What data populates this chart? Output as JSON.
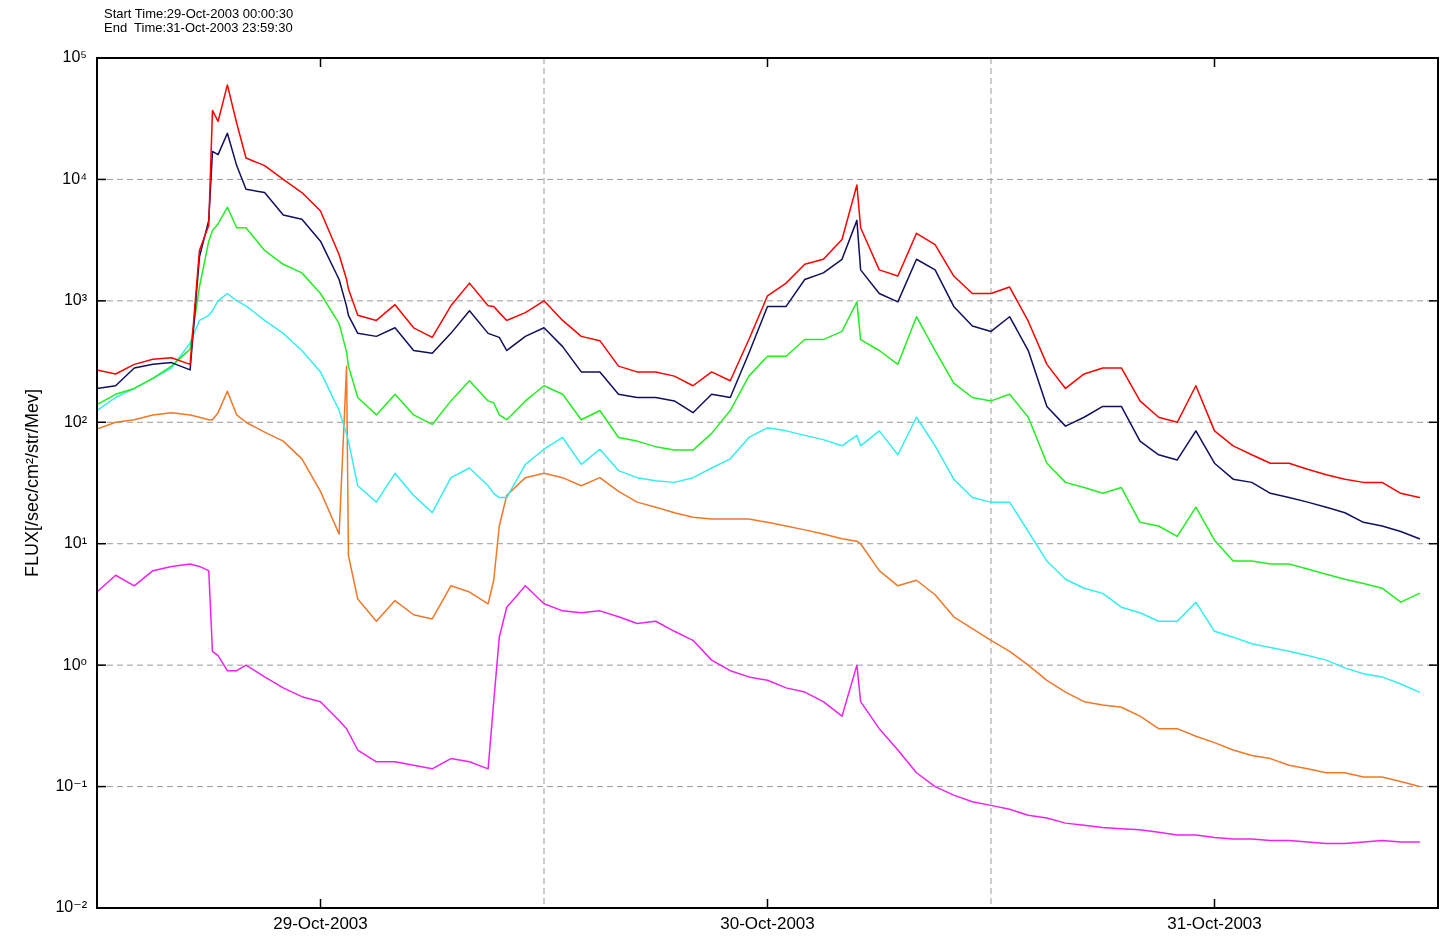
{
  "chart_data": {
    "type": "line",
    "annotations": [
      "Start Time:29-Oct-2003 00:00:30",
      "End  Time:31-Oct-2003 23:59:30"
    ],
    "ylabel": "FLUX[/sec/cm²/str/Mev]",
    "x": [
      "2003-10-29T00:00",
      "2003-10-29T01:00",
      "2003-10-29T02:00",
      "2003-10-29T03:00",
      "2003-10-29T04:00",
      "2003-10-29T05:00",
      "2003-10-29T05:30",
      "2003-10-29T06:00",
      "2003-10-29T06:12",
      "2003-10-29T06:30",
      "2003-10-29T07:00",
      "2003-10-29T07:30",
      "2003-10-29T08:00",
      "2003-10-29T09:00",
      "2003-10-29T10:00",
      "2003-10-29T11:00",
      "2003-10-29T12:00",
      "2003-10-29T13:00",
      "2003-10-29T13:24",
      "2003-10-29T13:30",
      "2003-10-29T14:00",
      "2003-10-29T15:00",
      "2003-10-29T16:00",
      "2003-10-29T17:00",
      "2003-10-29T18:00",
      "2003-10-29T19:00",
      "2003-10-29T20:00",
      "2003-10-29T21:00",
      "2003-10-29T21:18",
      "2003-10-29T21:36",
      "2003-10-29T22:00",
      "2003-10-29T23:00",
      "2003-10-30T00:00",
      "2003-10-30T01:00",
      "2003-10-30T02:00",
      "2003-10-30T03:00",
      "2003-10-30T04:00",
      "2003-10-30T05:00",
      "2003-10-30T06:00",
      "2003-10-30T07:00",
      "2003-10-30T08:00",
      "2003-10-30T09:00",
      "2003-10-30T10:00",
      "2003-10-30T11:00",
      "2003-10-30T12:00",
      "2003-10-30T13:00",
      "2003-10-30T14:00",
      "2003-10-30T15:00",
      "2003-10-30T16:00",
      "2003-10-30T16:48",
      "2003-10-30T17:00",
      "2003-10-30T18:00",
      "2003-10-30T19:00",
      "2003-10-30T20:00",
      "2003-10-30T21:00",
      "2003-10-30T22:00",
      "2003-10-30T23:00",
      "2003-10-31T00:00",
      "2003-10-31T01:00",
      "2003-10-31T02:00",
      "2003-10-31T03:00",
      "2003-10-31T04:00",
      "2003-10-31T05:00",
      "2003-10-31T06:00",
      "2003-10-31T07:00",
      "2003-10-31T08:00",
      "2003-10-31T09:00",
      "2003-10-31T10:00",
      "2003-10-31T11:00",
      "2003-10-31T12:00",
      "2003-10-31T13:00",
      "2003-10-31T14:00",
      "2003-10-31T15:00",
      "2003-10-31T16:00",
      "2003-10-31T17:00",
      "2003-10-31T18:00",
      "2003-10-31T19:00",
      "2003-10-31T20:00",
      "2003-10-31T21:00",
      "2003-10-31T22:00",
      "2003-10-31T23:00"
    ],
    "series": [
      {
        "color": "#ff0000",
        "values": [
          270,
          250,
          300,
          330,
          340,
          300,
          2600,
          4200,
          37000,
          30000,
          60000,
          29000,
          15000,
          13000,
          10000,
          7800,
          5500,
          2400,
          1500,
          1250,
          760,
          690,
          930,
          600,
          500,
          910,
          1400,
          910,
          900,
          800,
          690,
          800,
          1000,
          690,
          510,
          470,
          290,
          260,
          260,
          240,
          200,
          260,
          220,
          480,
          1100,
          1400,
          2000,
          2200,
          3200,
          9000,
          4000,
          1800,
          1600,
          3600,
          2900,
          1600,
          1150,
          1150,
          1300,
          680,
          300,
          190,
          250,
          280,
          280,
          150,
          110,
          100,
          200,
          85,
          64,
          54,
          46,
          46,
          41,
          37,
          34,
          32,
          32,
          26,
          24
        ]
      },
      {
        "color": "#10105e",
        "values": [
          190,
          200,
          280,
          300,
          310,
          270,
          2300,
          4600,
          17000,
          16000,
          24000,
          13000,
          8300,
          7800,
          5100,
          4700,
          3100,
          1500,
          900,
          760,
          540,
          510,
          600,
          390,
          370,
          540,
          830,
          540,
          520,
          500,
          390,
          510,
          600,
          420,
          260,
          260,
          170,
          160,
          160,
          150,
          120,
          170,
          160,
          370,
          900,
          900,
          1500,
          1700,
          2200,
          4600,
          1800,
          1150,
          980,
          2200,
          1800,
          900,
          620,
          560,
          740,
          390,
          135,
          93,
          110,
          135,
          135,
          70,
          54,
          49,
          85,
          46,
          34,
          32,
          26,
          24,
          22,
          20,
          18,
          15,
          14,
          12.6,
          11
        ]
      },
      {
        "color": "#22ee22",
        "values": [
          140,
          170,
          190,
          230,
          290,
          400,
          1300,
          3100,
          3800,
          4300,
          5900,
          4000,
          4000,
          2600,
          2000,
          1700,
          1150,
          650,
          380,
          290,
          160,
          115,
          170,
          115,
          96,
          150,
          220,
          150,
          145,
          115,
          105,
          150,
          200,
          170,
          105,
          125,
          75,
          70,
          63,
          59,
          59,
          81,
          125,
          240,
          350,
          350,
          480,
          480,
          560,
          980,
          480,
          390,
          300,
          740,
          390,
          210,
          160,
          150,
          170,
          110,
          46,
          32,
          29,
          26,
          29,
          15,
          14,
          11.5,
          20,
          10.7,
          7.2,
          7.2,
          6.8,
          6.8,
          6.2,
          5.6,
          5.1,
          4.7,
          4.3,
          3.3,
          3.9
        ]
      },
      {
        "color": "#33eeee",
        "values": [
          125,
          160,
          190,
          230,
          280,
          450,
          690,
          760,
          830,
          1000,
          1150,
          1000,
          910,
          690,
          540,
          390,
          260,
          125,
          80,
          70,
          30,
          22,
          38,
          25,
          18,
          35,
          42,
          30,
          26,
          24,
          24,
          45,
          60,
          75,
          45,
          60,
          40,
          35,
          33,
          32,
          35,
          42,
          50,
          75,
          90,
          85,
          78,
          72,
          64,
          78,
          64,
          85,
          54,
          110,
          64,
          34,
          24,
          22,
          22,
          12.6,
          7.2,
          5.1,
          4.3,
          3.9,
          3.0,
          2.7,
          2.3,
          2.3,
          3.3,
          1.9,
          1.7,
          1.5,
          1.4,
          1.3,
          1.2,
          1.1,
          0.95,
          0.85,
          0.8,
          0.7,
          0.6
        ]
      },
      {
        "color": "#f07828",
        "values": [
          88,
          100,
          105,
          115,
          120,
          115,
          110,
          105,
          105,
          120,
          180,
          115,
          100,
          83,
          70,
          50,
          27,
          12,
          290,
          8,
          3.5,
          2.3,
          3.4,
          2.6,
          2.4,
          4.5,
          4.0,
          3.2,
          5,
          14,
          25,
          35,
          38,
          35,
          30,
          35,
          27,
          22,
          20,
          18,
          16.5,
          16,
          16,
          16,
          15,
          14,
          13,
          12,
          11,
          10.5,
          10,
          6,
          4.5,
          5,
          3.8,
          2.5,
          2.0,
          1.6,
          1.3,
          1.0,
          0.75,
          0.6,
          0.5,
          0.47,
          0.45,
          0.38,
          0.3,
          0.3,
          0.26,
          0.23,
          0.2,
          0.18,
          0.17,
          0.15,
          0.14,
          0.13,
          0.13,
          0.12,
          0.12,
          0.11,
          0.1
        ]
      },
      {
        "color": "#ee22ee",
        "values": [
          4.0,
          5.5,
          4.5,
          6.0,
          6.5,
          6.8,
          6.5,
          6.0,
          1.3,
          1.2,
          0.9,
          0.9,
          1.0,
          0.8,
          0.65,
          0.55,
          0.5,
          0.35,
          0.3,
          0.28,
          0.2,
          0.16,
          0.16,
          0.15,
          0.14,
          0.17,
          0.16,
          0.14,
          0.5,
          1.7,
          3.0,
          4.5,
          3.2,
          2.8,
          2.7,
          2.8,
          2.5,
          2.2,
          2.3,
          1.9,
          1.6,
          1.1,
          0.9,
          0.8,
          0.75,
          0.65,
          0.6,
          0.5,
          0.38,
          1.0,
          0.5,
          0.3,
          0.2,
          0.13,
          0.1,
          0.085,
          0.075,
          0.07,
          0.065,
          0.058,
          0.055,
          0.05,
          0.048,
          0.046,
          0.045,
          0.044,
          0.042,
          0.04,
          0.04,
          0.038,
          0.037,
          0.037,
          0.036,
          0.036,
          0.035,
          0.034,
          0.034,
          0.035,
          0.036,
          0.035,
          0.035
        ]
      }
    ],
    "xlim": [
      "2003-10-29T00:00",
      "2003-11-01T00:00"
    ],
    "xticks": [
      {
        "value": "2003-10-29T12:00",
        "label": "29-Oct-2003"
      },
      {
        "value": "2003-10-30T12:00",
        "label": "30-Oct-2003"
      },
      {
        "value": "2003-10-31T12:00",
        "label": "31-Oct-2003"
      }
    ],
    "ylim": [
      0.01,
      100000
    ],
    "yticks": [
      {
        "value": 0.01,
        "label": "10⁻²"
      },
      {
        "value": 0.1,
        "label": "10⁻¹"
      },
      {
        "value": 1,
        "label": "10⁰"
      },
      {
        "value": 10,
        "label": "10¹"
      },
      {
        "value": 100,
        "label": "10²"
      },
      {
        "value": 1000,
        "label": "10³"
      },
      {
        "value": 10000,
        "label": "10⁴"
      },
      {
        "value": 100000,
        "label": "10⁵"
      }
    ],
    "log": true,
    "grid": "y",
    "ref_lines": [
      {
        "axis": "x",
        "value": "2003-10-30T00:00",
        "color": "#999999",
        "line_style": "dashed"
      },
      {
        "axis": "x",
        "value": "2003-10-31T00:00",
        "color": "#999999",
        "line_style": "dashed"
      }
    ]
  }
}
